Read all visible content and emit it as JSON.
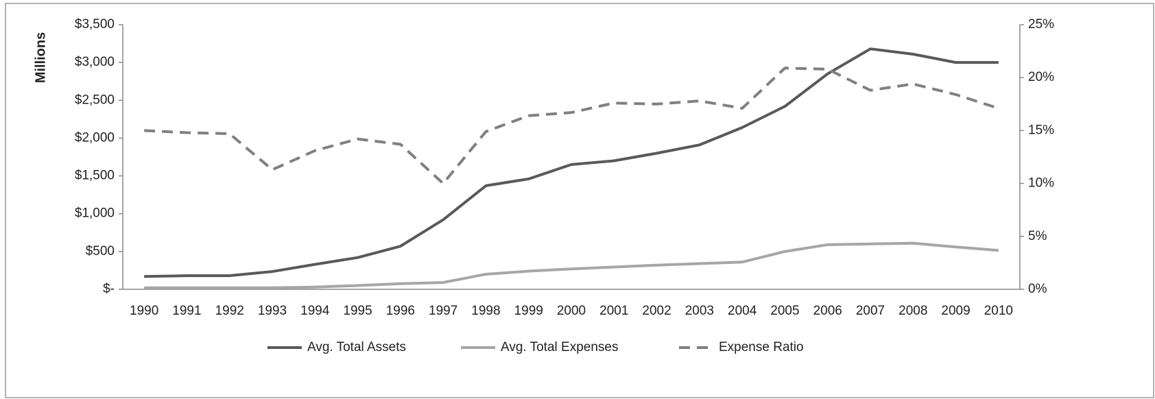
{
  "chart_data": {
    "type": "line",
    "y_label": "Millions",
    "categories": [
      "1990",
      "1991",
      "1992",
      "1993",
      "1994",
      "1995",
      "1996",
      "1997",
      "1998",
      "1999",
      "2000",
      "2001",
      "2002",
      "2003",
      "2004",
      "2005",
      "2006",
      "2007",
      "2008",
      "2009",
      "2010"
    ],
    "ylim": [
      0,
      3500
    ],
    "yticks": [
      {
        "value": 0,
        "label": "$-"
      },
      {
        "value": 500,
        "label": "$500"
      },
      {
        "value": 1000,
        "label": "$1,000"
      },
      {
        "value": 1500,
        "label": "$1,500"
      },
      {
        "value": 2000,
        "label": "$2,000"
      },
      {
        "value": 2500,
        "label": "$2,500"
      },
      {
        "value": 3000,
        "label": "$3,000"
      },
      {
        "value": 3500,
        "label": "$3,500"
      }
    ],
    "y2lim": [
      0,
      25
    ],
    "y2ticks": [
      {
        "value": 0,
        "label": "0%"
      },
      {
        "value": 5,
        "label": "5%"
      },
      {
        "value": 10,
        "label": "10%"
      },
      {
        "value": 15,
        "label": "15%"
      },
      {
        "value": 20,
        "label": "20%"
      },
      {
        "value": 25,
        "label": "25%"
      }
    ],
    "legend": "bottom",
    "series": [
      {
        "name": "Avg. Total Assets",
        "color": "#595959",
        "dashed": false,
        "values": [
          170,
          180,
          180,
          235,
          330,
          420,
          570,
          920,
          1370,
          1460,
          1650,
          1700,
          1800,
          1910,
          2140,
          2420,
          2850,
          3180,
          3110,
          3000,
          3000
        ]
      },
      {
        "name": "Avg. Total Expenses",
        "color": "#a6a6a6",
        "dashed": false,
        "values": [
          20,
          20,
          20,
          20,
          30,
          50,
          75,
          90,
          200,
          240,
          270,
          295,
          320,
          340,
          360,
          500,
          590,
          600,
          610,
          560,
          515
        ]
      },
      {
        "name": "Expense Ratio",
        "color": "#808080",
        "dashed": true,
        "axis": "y2",
        "values": [
          15.0,
          14.8,
          14.7,
          11.3,
          13.1,
          14.2,
          13.7,
          10.0,
          14.9,
          16.4,
          16.7,
          17.6,
          17.5,
          17.8,
          17.1,
          20.9,
          20.8,
          18.8,
          19.4,
          18.4,
          17.1
        ]
      }
    ]
  }
}
